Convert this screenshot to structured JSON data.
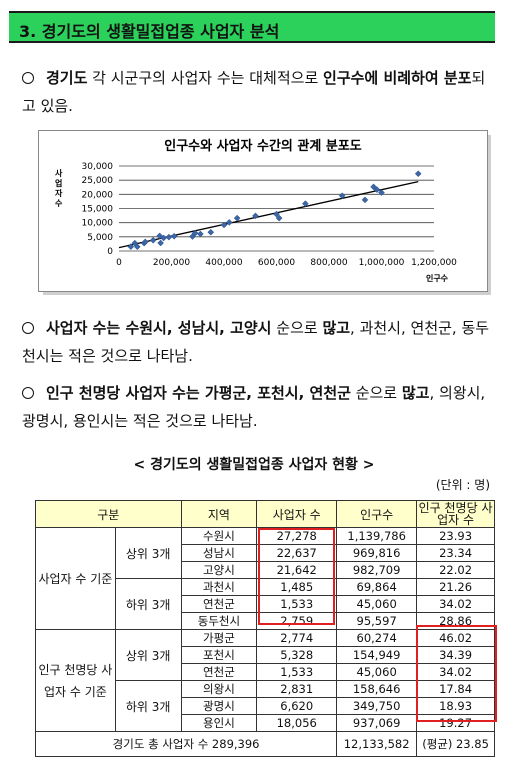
{
  "title": "3. 경기도의 생활밀접업종 사업자 분석",
  "bullets": [
    {
      "parts": [
        [
          "b",
          "경기도"
        ],
        [
          "n",
          " 각 시군구의 사업자 수는 대체적으로 "
        ],
        [
          "b",
          "인구수에 비례하여 분포"
        ],
        [
          "n",
          "되고 있음."
        ]
      ]
    },
    {
      "parts": [
        [
          "b",
          "사업자 수는 수원시, 성남시, 고양시"
        ],
        [
          "n",
          " 순으로 "
        ],
        [
          "b",
          "많고"
        ],
        [
          "n",
          ", 과천시, 연천군, 동두천시는 적은 것으로 나타남."
        ]
      ]
    },
    {
      "parts": [
        [
          "b",
          "인구 천명당 사업자 수는 가평군, 포천시, 연천군"
        ],
        [
          "n",
          " 순으로 "
        ],
        [
          "b",
          "많고"
        ],
        [
          "n",
          ", 의왕시, 광명시, 용인시는 적은 것으로 나타남."
        ]
      ]
    }
  ],
  "chart_data": {
    "type": "scatter",
    "title": "인구수와 사업자 수간의 관계 분포도",
    "ylabel": "사업자수",
    "xlabel": "인구수",
    "xlim": [
      0,
      1200000
    ],
    "ylim": [
      0,
      30000
    ],
    "xticks": [
      "0",
      "200,000",
      "400,000",
      "600,000",
      "800,000",
      "1,000,000",
      "1,200,000"
    ],
    "yticks": [
      "0",
      "5,000",
      "10,000",
      "15,000",
      "20,000",
      "25,000",
      "30,000"
    ],
    "points": [
      [
        45060,
        1533
      ],
      [
        60274,
        2774
      ],
      [
        69864,
        1485
      ],
      [
        95597,
        2759
      ],
      [
        100000,
        3200
      ],
      [
        130000,
        3800
      ],
      [
        154949,
        5328
      ],
      [
        158646,
        2831
      ],
      [
        170000,
        4600
      ],
      [
        190000,
        4900
      ],
      [
        210000,
        5200
      ],
      [
        280000,
        5100
      ],
      [
        290000,
        6300
      ],
      [
        310000,
        6000
      ],
      [
        349750,
        6620
      ],
      [
        400000,
        9200
      ],
      [
        420000,
        10100
      ],
      [
        450000,
        11600
      ],
      [
        520000,
        12400
      ],
      [
        600000,
        13000
      ],
      [
        610000,
        11600
      ],
      [
        710000,
        16700
      ],
      [
        850000,
        19500
      ],
      [
        937069,
        18056
      ],
      [
        969816,
        22637
      ],
      [
        982709,
        21642
      ],
      [
        1000000,
        20600
      ],
      [
        1139786,
        27278
      ]
    ],
    "trend": [
      [
        0,
        1200
      ],
      [
        1140000,
        24500
      ]
    ]
  },
  "caption": "< 경기도의 생활밀접업종 사업자 현황 >",
  "unit": "(단위 : 명)",
  "table": {
    "headers": [
      "구분",
      "지역",
      "사업자 수",
      "인구수",
      "인구 천명당 사업자 수"
    ],
    "group1": "사업자 수 기준",
    "group2": "인구 천명당 사업자 수 기준",
    "top3": "상위 3개",
    "bottom3": "하위 3개",
    "rows": [
      [
        "수원시",
        "27,278",
        "1,139,786",
        "23.93"
      ],
      [
        "성남시",
        "22,637",
        "969,816",
        "23.34"
      ],
      [
        "고양시",
        "21,642",
        "982,709",
        "22.02"
      ],
      [
        "과천시",
        "1,485",
        "69,864",
        "21.26"
      ],
      [
        "연천군",
        "1,533",
        "45,060",
        "34.02"
      ],
      [
        "동두천시",
        "2,759",
        "95,597",
        "28.86"
      ],
      [
        "가평군",
        "2,774",
        "60,274",
        "46.02"
      ],
      [
        "포천시",
        "5,328",
        "154,949",
        "34.39"
      ],
      [
        "연천군",
        "1,533",
        "45,060",
        "34.02"
      ],
      [
        "의왕시",
        "2,831",
        "158,646",
        "17.84"
      ],
      [
        "광명시",
        "6,620",
        "349,750",
        "18.93"
      ],
      [
        "용인시",
        "18,056",
        "937,069",
        "19.27"
      ]
    ],
    "total_label": "경기도 총 사업자 수 289,396",
    "total_pop": "12,133,582",
    "total_avg": "(평균) 23.85"
  }
}
